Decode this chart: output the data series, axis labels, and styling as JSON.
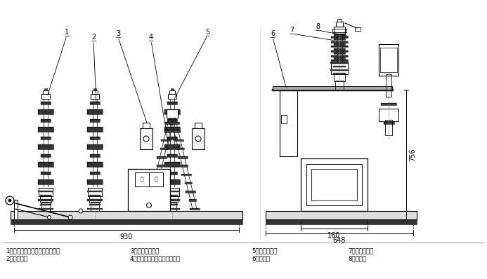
{
  "bg_color": "#ffffff",
  "line_color": "#000000",
  "legend_items": [
    "1．上绝缘筒（内有真空灭弧室）",
    "2．下绝缘筒",
    "3．手动分闸手柄",
    "4．机箱（内装永磁操动机构）",
    "5．电压互感器",
    "6．下出线",
    "7．电流互感器",
    "8．上出线"
  ],
  "dim_930": "930",
  "dim_648": "648",
  "dim_160": "160",
  "dim_756": "756"
}
